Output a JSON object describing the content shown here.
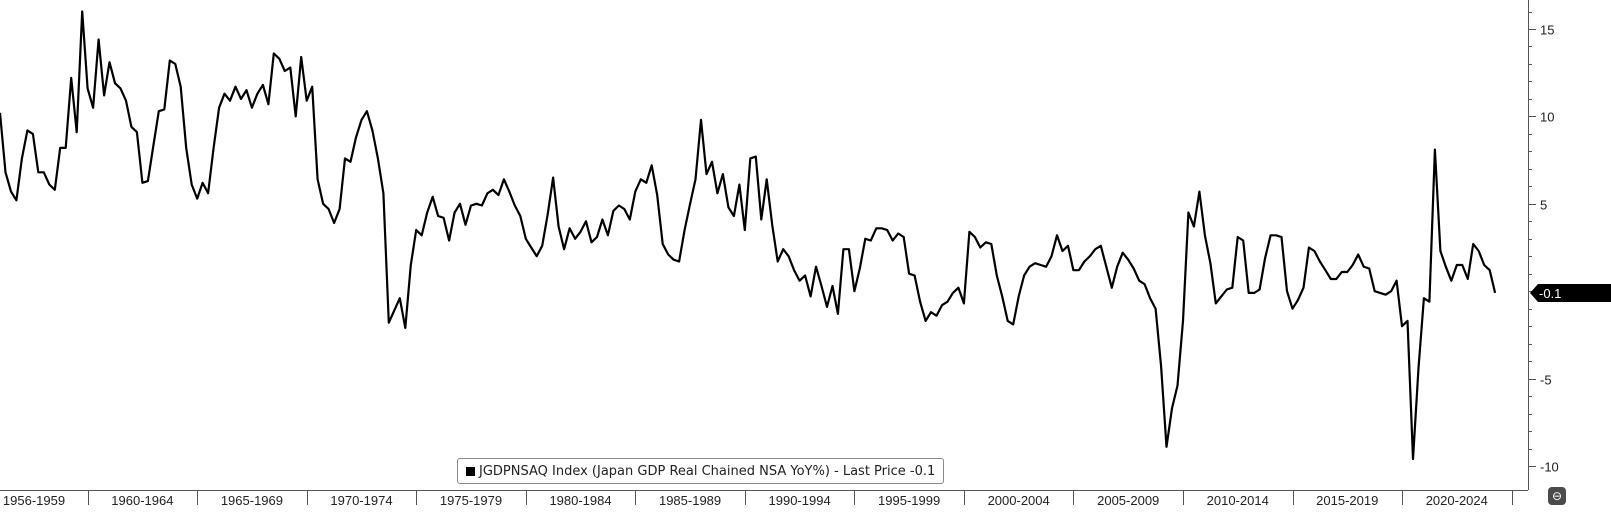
{
  "chart_data": {
    "type": "line",
    "title": "",
    "xlabel": "",
    "ylabel": "",
    "x_range": [
      1956.0,
      2025.75
    ],
    "ylim": [
      -10.5,
      16.5
    ],
    "y_ticks": [
      15,
      10,
      5,
      -5,
      -10
    ],
    "x_tick_labels": [
      "1956-1959",
      "1960-1964",
      "1965-1969",
      "1970-1974",
      "1975-1979",
      "1980-1984",
      "1985-1989",
      "1990-1994",
      "1995-1999",
      "2000-2004",
      "2005-2009",
      "2010-2014",
      "2015-2019",
      "2020-2024"
    ],
    "x_tick_starts": [
      1955,
      1960,
      1965,
      1970,
      1975,
      1980,
      1985,
      1990,
      1995,
      2000,
      2005,
      2010,
      2015,
      2020,
      2025
    ],
    "grid": false,
    "line_color": "#000000",
    "series": [
      {
        "x_start": 1956.0,
        "x_step": 0.25,
        "values": [
          10.2,
          6.8,
          5.7,
          5.2,
          7.6,
          9.2,
          9.0,
          6.8,
          6.8,
          6.1,
          5.8,
          8.2,
          8.2,
          12.2,
          9.1,
          16.0,
          11.6,
          10.5,
          14.4,
          11.2,
          13.1,
          11.9,
          11.6,
          10.9,
          9.4,
          9.1,
          6.2,
          6.3,
          8.3,
          10.3,
          10.4,
          13.2,
          13.0,
          11.7,
          8.2,
          6.1,
          5.3,
          6.2,
          5.6,
          8.2,
          10.5,
          11.3,
          10.9,
          11.7,
          11.0,
          11.5,
          10.5,
          11.3,
          11.8,
          10.7,
          13.6,
          13.3,
          12.6,
          12.8,
          10.0,
          13.4,
          10.9,
          11.7,
          6.4,
          5.0,
          4.7,
          3.9,
          4.7,
          7.6,
          7.4,
          8.8,
          9.8,
          10.3,
          9.2,
          7.6,
          5.6,
          -1.8,
          -1.1,
          -0.4,
          -2.1,
          1.5,
          3.5,
          3.2,
          4.5,
          5.4,
          4.3,
          4.2,
          2.9,
          4.5,
          5.0,
          3.8,
          4.9,
          5.0,
          4.9,
          5.6,
          5.8,
          5.5,
          6.4,
          5.7,
          4.9,
          4.3,
          3.0,
          2.5,
          2.0,
          2.6,
          4.4,
          6.5,
          3.7,
          2.4,
          3.6,
          3.0,
          3.4,
          4.0,
          2.8,
          3.1,
          4.1,
          3.2,
          4.6,
          4.9,
          4.7,
          4.1,
          5.7,
          6.4,
          6.2,
          7.2,
          5.5,
          2.7,
          2.1,
          1.8,
          1.7,
          3.5,
          5.0,
          6.4,
          9.8,
          6.7,
          7.4,
          5.6,
          6.7,
          4.8,
          4.3,
          6.1,
          3.5,
          7.6,
          7.7,
          4.1,
          6.4,
          3.8,
          1.7,
          2.4,
          2.0,
          1.2,
          0.6,
          0.9,
          -0.3,
          1.4,
          0.3,
          -0.9,
          0.3,
          -1.3,
          2.4,
          2.4,
          0.0,
          1.3,
          3.0,
          2.9,
          3.6,
          3.6,
          3.5,
          2.9,
          3.3,
          3.1,
          1.0,
          0.9,
          -0.6,
          -1.7,
          -1.2,
          -1.4,
          -0.8,
          -0.6,
          -0.1,
          0.2,
          -0.7,
          3.4,
          3.1,
          2.5,
          2.8,
          2.7,
          0.9,
          -0.3,
          -1.7,
          -1.9,
          -0.3,
          0.9,
          1.4,
          1.6,
          1.5,
          1.4,
          2.0,
          3.2,
          2.3,
          2.6,
          1.2,
          1.2,
          1.7,
          2.0,
          2.4,
          2.6,
          1.4,
          0.2,
          1.4,
          2.2,
          1.8,
          1.3,
          0.6,
          0.4,
          -0.4,
          -1.0,
          -4.3,
          -8.9,
          -6.7,
          -5.4,
          -1.7,
          4.5,
          3.7,
          5.7,
          3.2,
          1.6,
          -0.7,
          -0.3,
          0.1,
          0.2,
          3.1,
          2.9,
          -0.1,
          -0.1,
          0.1,
          1.9,
          3.2,
          3.2,
          3.1,
          0.0,
          -1.0,
          -0.5,
          0.2,
          2.5,
          2.3,
          1.7,
          1.2,
          0.7,
          0.7,
          1.1,
          1.1,
          1.5,
          2.1,
          1.4,
          1.3,
          0.0,
          -0.1,
          -0.2,
          0.0,
          0.6,
          -2.0,
          -1.7,
          -9.6,
          -4.4,
          -0.4,
          -0.6,
          8.1,
          2.3,
          1.4,
          0.6,
          1.5,
          1.5,
          0.7,
          2.7,
          2.3,
          1.5,
          1.2,
          -0.1
        ]
      }
    ],
    "last_value": -0.1,
    "last_value_label": "-0.1",
    "legend": {
      "text": "JGDPNSAQ Index (Japan GDP Real Chained NSA YoY%) - Last Price -0.1",
      "placement": "bottom-center"
    }
  },
  "ui": {
    "corner_icon": "settings-icon",
    "corner_glyph": "⊖"
  }
}
